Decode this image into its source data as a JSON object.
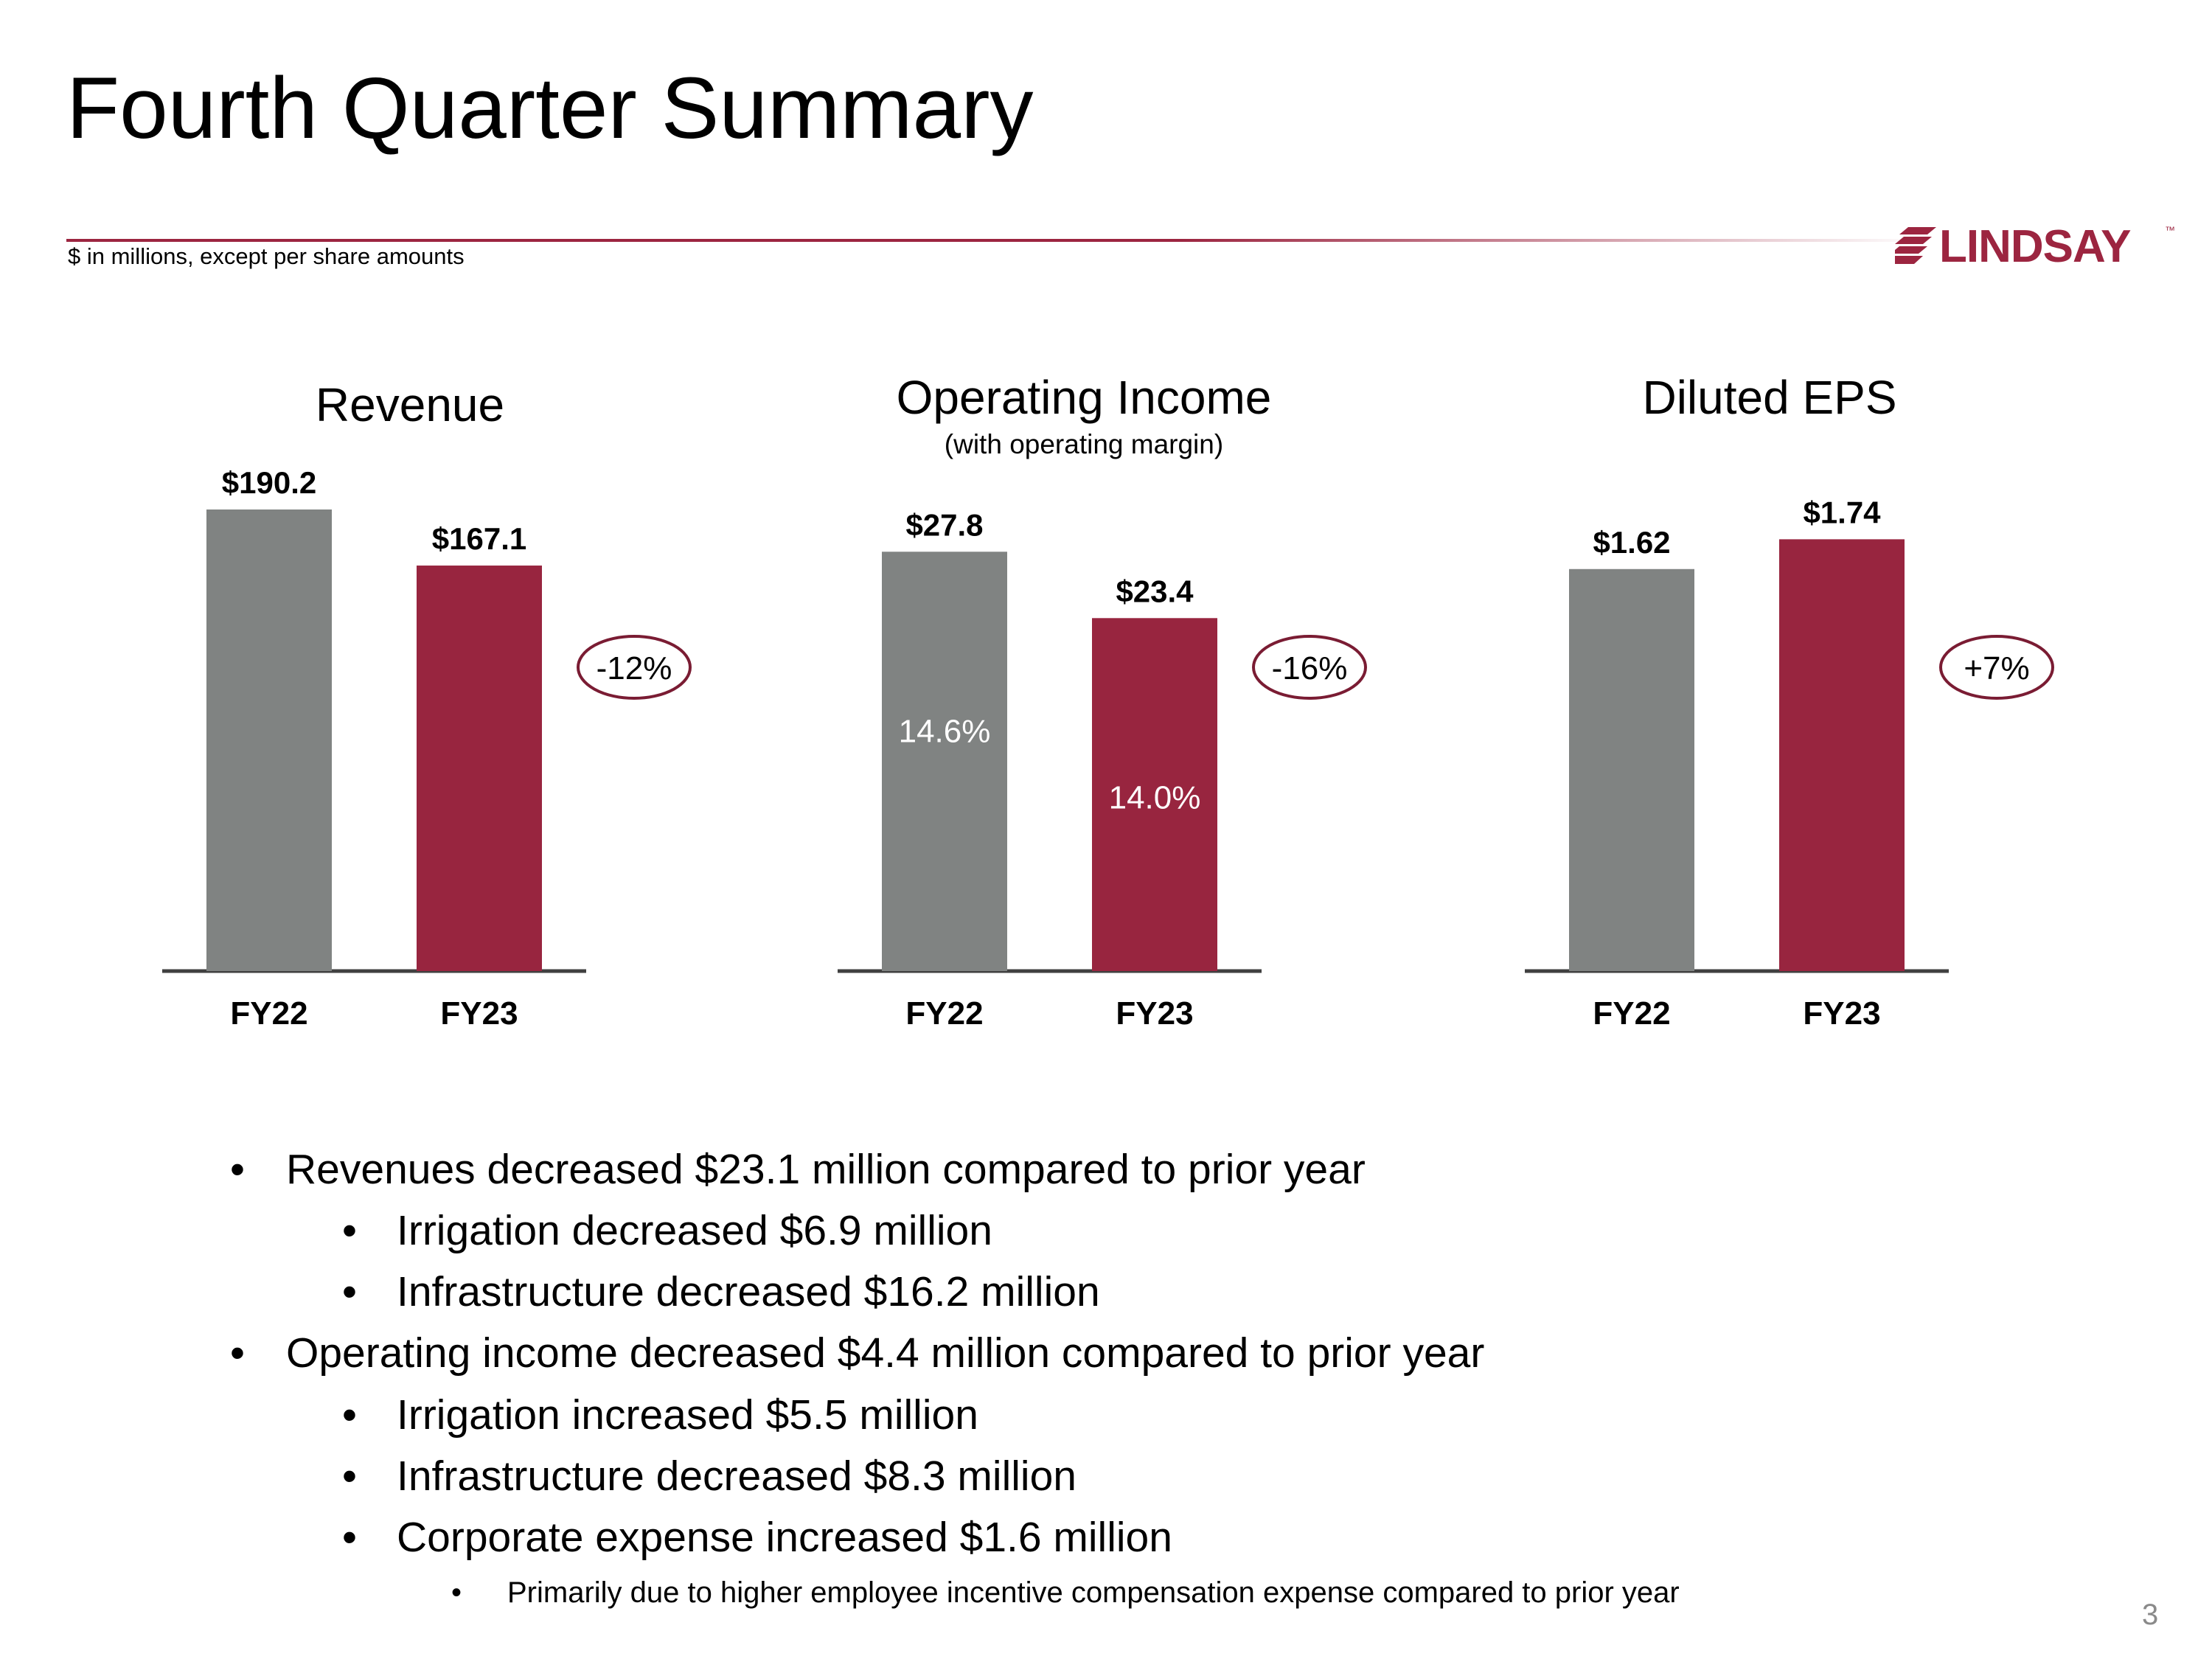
{
  "slide": {
    "title": "Fourth Quarter Summary",
    "subtitle": "$ in millions, except per share amounts",
    "logo": "LINDSAY",
    "logo_tm": "™",
    "page_number": "3"
  },
  "colors": {
    "fy22": "#808382",
    "fy23": "#98253f",
    "axis": "#404040",
    "circle": "#7a1c33"
  },
  "chart_data": [
    {
      "type": "bar",
      "title": "Revenue",
      "subtitle": "",
      "categories": [
        "FY22",
        "FY23"
      ],
      "values": [
        190.2,
        167.1
      ],
      "value_labels": [
        "$190.2",
        "$167.1"
      ],
      "inner_labels": [
        "",
        ""
      ],
      "change_label": "-12%",
      "ylim": [
        0,
        190.2
      ]
    },
    {
      "type": "bar",
      "title": "Operating Income",
      "subtitle": "(with operating margin)",
      "categories": [
        "FY22",
        "FY23"
      ],
      "values": [
        27.8,
        23.4
      ],
      "value_labels": [
        "$27.8",
        "$23.4"
      ],
      "inner_labels": [
        "14.6%",
        "14.0%"
      ],
      "change_label": "-16%",
      "ylim": [
        0,
        30.6
      ]
    },
    {
      "type": "bar",
      "title": "Diluted EPS",
      "subtitle": "",
      "categories": [
        "FY22",
        "FY23"
      ],
      "values": [
        1.62,
        1.74
      ],
      "value_labels": [
        "$1.62",
        "$1.74"
      ],
      "inner_labels": [
        "",
        ""
      ],
      "change_label": "+7%",
      "ylim": [
        0,
        1.86
      ]
    }
  ],
  "bullets": [
    {
      "level": 1,
      "text": "Revenues decreased $23.1 million compared to prior year"
    },
    {
      "level": 2,
      "text": "Irrigation decreased $6.9 million"
    },
    {
      "level": 2,
      "text": "Infrastructure decreased $16.2 million"
    },
    {
      "level": 1,
      "text": "Operating income decreased $4.4 million compared to prior year"
    },
    {
      "level": 2,
      "text": "Irrigation increased $5.5 million"
    },
    {
      "level": 2,
      "text": "Infrastructure decreased $8.3 million"
    },
    {
      "level": 2,
      "text": "Corporate expense increased $1.6 million"
    },
    {
      "level": 3,
      "text": "Primarily due to higher employee incentive compensation expense compared to prior year"
    }
  ],
  "bullet_glyph": "•"
}
